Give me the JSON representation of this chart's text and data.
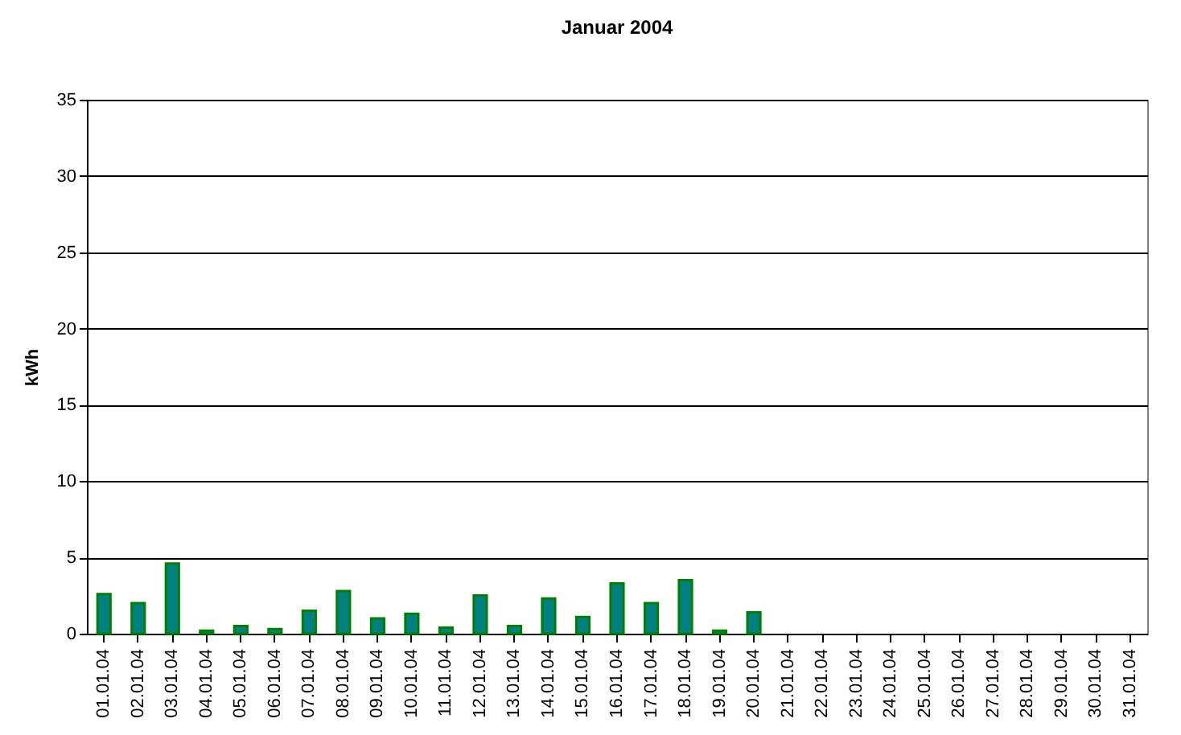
{
  "chart_data": {
    "type": "bar",
    "title": "Januar 2004",
    "ylabel": "kWh",
    "categories": [
      "01.01.04",
      "02.01.04",
      "03.01.04",
      "04.01.04",
      "05.01.04",
      "06.01.04",
      "07.01.04",
      "08.01.04",
      "09.01.04",
      "10.01.04",
      "11.01.04",
      "12.01.04",
      "13.01.04",
      "14.01.04",
      "15.01.04",
      "16.01.04",
      "17.01.04",
      "18.01.04",
      "19.01.04",
      "20.01.04",
      "21.01.04",
      "22.01.04",
      "23.01.04",
      "24.01.04",
      "25.01.04",
      "26.01.04",
      "27.01.04",
      "28.01.04",
      "29.01.04",
      "30.01.04",
      "31.01.04"
    ],
    "series": [
      {
        "color": "#008080",
        "values": [
          2.6,
          2.0,
          4.6,
          0.2,
          0.5,
          0.3,
          1.5,
          2.8,
          1.0,
          1.3,
          0.4,
          2.5,
          0.5,
          2.3,
          1.1,
          3.3,
          2.0,
          3.5,
          0.2,
          1.4,
          null,
          null,
          null,
          null,
          null,
          null,
          null,
          null,
          null,
          null,
          null
        ]
      }
    ],
    "ylim": [
      0,
      35
    ],
    "yticks": [
      0,
      5,
      10,
      15,
      20,
      25,
      30,
      35
    ],
    "grid": "y"
  }
}
